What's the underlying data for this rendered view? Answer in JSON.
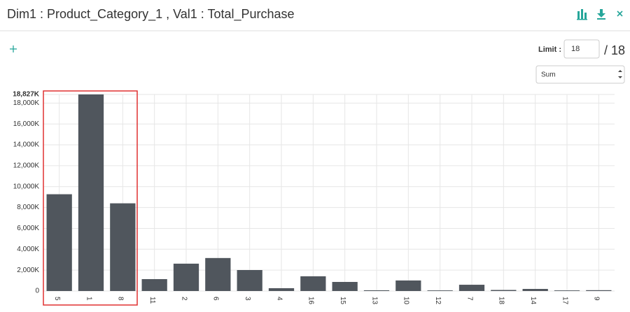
{
  "header": {
    "title": "Dim1 : Product_Category_1 , Val1 : Total_Purchase"
  },
  "controls": {
    "limit_label": "Limit :",
    "limit_value": "18",
    "total": "/ 18",
    "aggregate": "Sum"
  },
  "chart_data": {
    "type": "bar",
    "categories": [
      "5",
      "1",
      "8",
      "11",
      "2",
      "6",
      "3",
      "4",
      "16",
      "15",
      "13",
      "10",
      "12",
      "7",
      "18",
      "14",
      "17",
      "9"
    ],
    "values": [
      9270,
      18827,
      8400,
      1140,
      2620,
      3160,
      2010,
      270,
      1410,
      870,
      70,
      1010,
      60,
      600,
      100,
      200,
      60,
      80
    ],
    "color": "#50565d",
    "ylim": [
      0,
      18827
    ],
    "yticks": [
      0,
      {
        "value": 2000,
        "label": "2,000K"
      },
      {
        "value": 4000,
        "label": "4,000K"
      },
      {
        "value": 6000,
        "label": "6,000K"
      },
      {
        "value": 8000,
        "label": "8,000K"
      },
      {
        "value": 10000,
        "label": "10,000K"
      },
      {
        "value": 12000,
        "label": "12,000K"
      },
      {
        "value": 14000,
        "label": "14,000K"
      },
      {
        "value": 16000,
        "label": "16,000K"
      },
      {
        "value": 18000,
        "label": "18,000K"
      },
      {
        "value": 18827,
        "label": "18,827K"
      }
    ],
    "grid": true
  }
}
